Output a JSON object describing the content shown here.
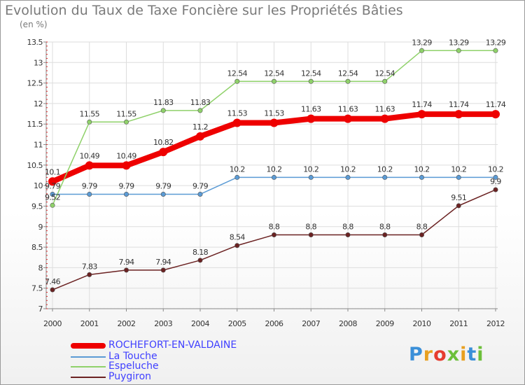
{
  "title": "Evolution du Taux de Taxe Foncière sur les Propriétés Bâties",
  "subtitle": "(en %)",
  "logo": "Proxiti",
  "logo_colors": [
    "#3a8fd8",
    "#e8a020",
    "#e63c2f",
    "#6cbf3a",
    "#e8a020",
    "#3a8fd8",
    "#6cbf3a"
  ],
  "chart_data": {
    "type": "line",
    "x": [
      "2000",
      "2001",
      "2002",
      "2003",
      "2004",
      "2005",
      "2006",
      "2007",
      "2008",
      "2009",
      "2010",
      "2011",
      "2012"
    ],
    "ylim": [
      7,
      13.5
    ],
    "yticks": [
      "7",
      "7.5",
      "8",
      "8.5",
      "9",
      "9.5",
      "10",
      "10.5",
      "11",
      "11.5",
      "12",
      "12.5",
      "13",
      "13.5"
    ],
    "grid": true,
    "legend_position": "bottom-left",
    "series": [
      {
        "name": "ROCHEFORT-EN-VALDAINE",
        "color": "#ee0000",
        "width": 8,
        "values": [
          10.1,
          10.49,
          10.49,
          10.82,
          11.2,
          11.53,
          11.53,
          11.63,
          11.63,
          11.63,
          11.74,
          11.74,
          11.74
        ],
        "labels": [
          "10.1",
          "10.49",
          "10.49",
          "10.82",
          "11.2",
          "11.53",
          "11.53",
          "11.63",
          "11.63",
          "11.63",
          "11.74",
          "11.74",
          "11.74"
        ]
      },
      {
        "name": "La Touche",
        "color": "#5b9bd5",
        "width": 1.5,
        "values": [
          9.79,
          9.79,
          9.79,
          9.79,
          9.79,
          10.2,
          10.2,
          10.2,
          10.2,
          10.2,
          10.2,
          10.2,
          10.2
        ],
        "labels": [
          "9.79",
          "9.79",
          "9.79",
          "9.79",
          "9.79",
          "10.2",
          "10.2",
          "10.2",
          "10.2",
          "10.2",
          "10.2",
          "10.2",
          "10.2"
        ]
      },
      {
        "name": "Espeluche",
        "color": "#8fd16a",
        "width": 1.5,
        "values": [
          9.52,
          11.55,
          11.55,
          11.83,
          11.83,
          12.54,
          12.54,
          12.54,
          12.54,
          12.54,
          13.29,
          13.29,
          13.29
        ],
        "labels": [
          "9.52",
          "11.55",
          "11.55",
          "11.83",
          "11.83",
          "12.54",
          "12.54",
          "12.54",
          "12.54",
          "12.54",
          "13.29",
          "13.29",
          "13.29"
        ]
      },
      {
        "name": "Puygiron",
        "color": "#6b2222",
        "width": 1.5,
        "values": [
          7.46,
          7.83,
          7.94,
          7.94,
          8.18,
          8.54,
          8.8,
          8.8,
          8.8,
          8.8,
          8.8,
          9.51,
          9.9
        ],
        "labels": [
          "7.46",
          "7.83",
          "7.94",
          "7.94",
          "8.18",
          "8.54",
          "8.8",
          "8.8",
          "8.8",
          "8.8",
          "8.8",
          "9.51",
          "9.9"
        ]
      }
    ]
  }
}
